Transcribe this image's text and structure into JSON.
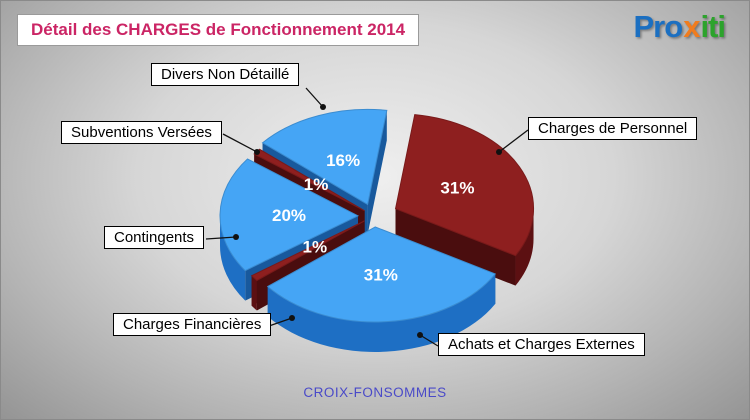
{
  "logo": {
    "part1": "Pro",
    "part2": "x",
    "part3": "iti"
  },
  "colors": {
    "title_text": "#cb2565",
    "footer_text": "#4a4ac8",
    "blue_slice": "#45a5f5",
    "red_slice": "#8e1f1f",
    "label_box_bg": "#ffffff",
    "label_box_border": "#000000"
  },
  "chart_data": {
    "type": "pie",
    "title": "Détail des CHARGES de Fonctionnement 2014",
    "footer": "CROIX-FONSOMMES",
    "style": "3d-exploded",
    "legend_position": "callout-labels",
    "start_angle_deg": 8,
    "slices": [
      {
        "label": "Charges de Personnel",
        "value": 31,
        "pct_label": "31%",
        "color": "#8e1f1f",
        "side_color": "#5c1012",
        "explode": 24
      },
      {
        "label": "Achats et Charges Externes",
        "value": 31,
        "pct_label": "31%",
        "color": "#45a5f5",
        "side_color": "#1e6fc4",
        "explode": 16
      },
      {
        "label": "Charges Financières",
        "value": 1,
        "pct_label": "1%",
        "color": "#8e1f1f",
        "side_color": "#5c1012",
        "explode": 12
      },
      {
        "label": "Contingents",
        "value": 20,
        "pct_label": "20%",
        "color": "#45a5f5",
        "side_color": "#1e6fc4",
        "explode": 16
      },
      {
        "label": "Subventions Versées",
        "value": 1,
        "pct_label": "1%",
        "color": "#8e1f1f",
        "side_color": "#5c1012",
        "explode": 12
      },
      {
        "label": "Divers Non Détaillé",
        "value": 16,
        "pct_label": "16%",
        "color": "#45a5f5",
        "side_color": "#1e6fc4",
        "explode": 18
      }
    ]
  }
}
